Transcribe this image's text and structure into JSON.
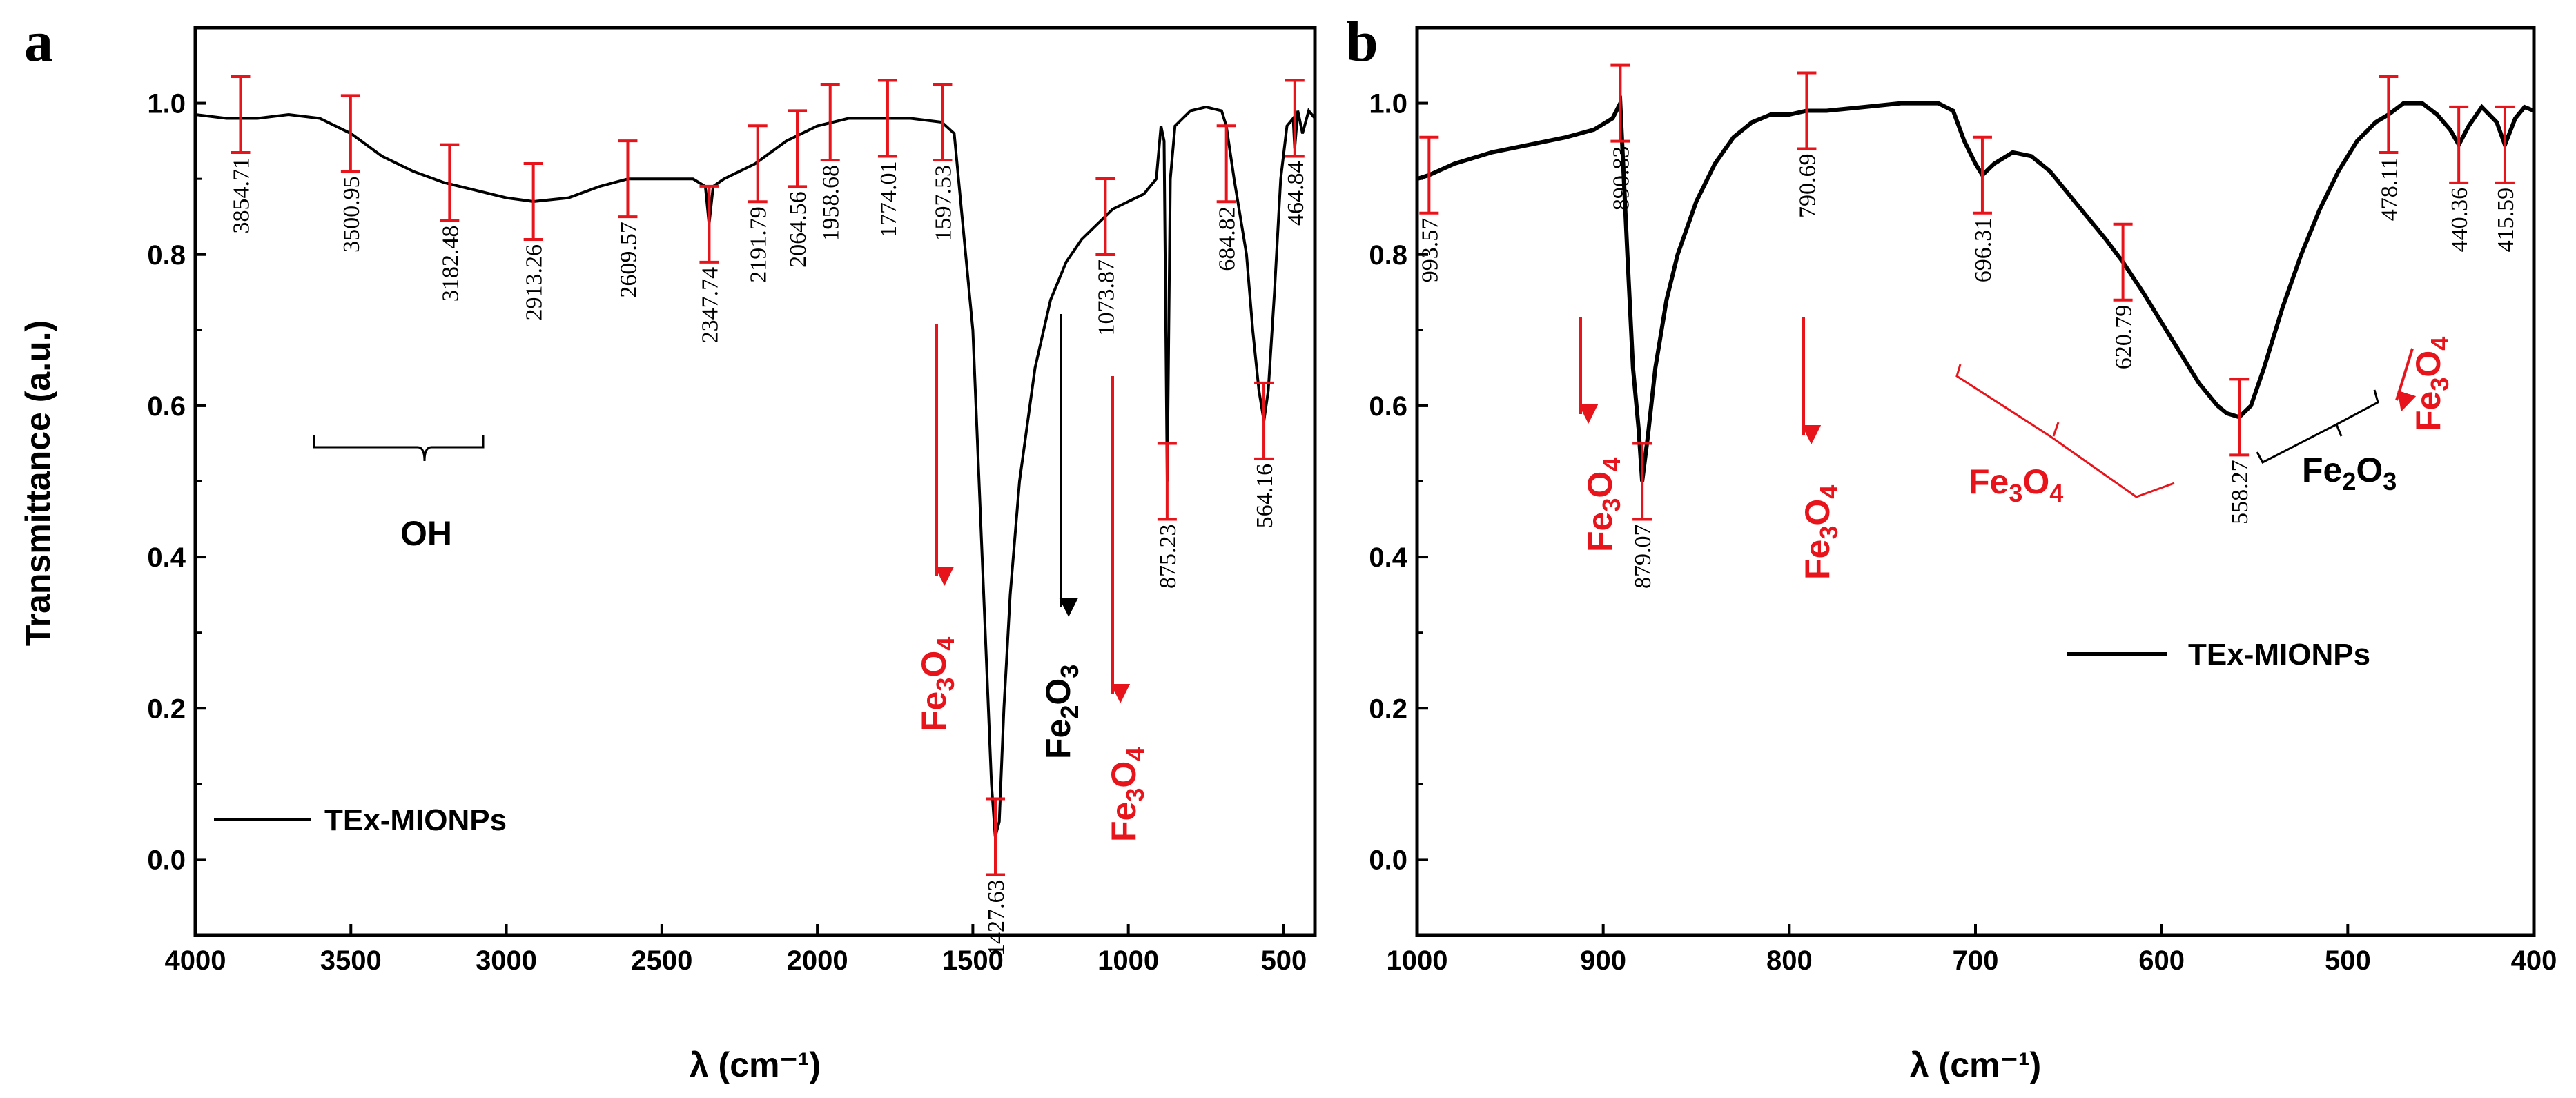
{
  "colors": {
    "curve": "#000000",
    "marker": "#e8141b",
    "annotation_red": "#e8141b",
    "annotation_black": "#000000"
  },
  "chart_data": [
    {
      "panel": "a",
      "type": "line",
      "xlabel": "λ (cm⁻¹)",
      "ylabel": "Transmittance (a.u.)",
      "xlim": [
        4000,
        400
      ],
      "ylim": [
        -0.1,
        1.1
      ],
      "xticks": [
        "4000",
        "3500",
        "3000",
        "2500",
        "2000",
        "1500",
        "1000",
        "500"
      ],
      "yticks": [
        "0.0",
        "0.2",
        "0.4",
        "0.6",
        "0.8",
        "1.0"
      ],
      "legend": "TEx-MIONPs",
      "series": [
        {
          "name": "TEx-MIONPs",
          "x": [
            4000,
            3900,
            3800,
            3700,
            3600,
            3500,
            3400,
            3300,
            3200,
            3100,
            3000,
            2913,
            2800,
            2700,
            2609,
            2500,
            2400,
            2360,
            2348,
            2335,
            2300,
            2200,
            2100,
            2000,
            1900,
            1800,
            1700,
            1600,
            1560,
            1500,
            1460,
            1440,
            1428,
            1415,
            1400,
            1380,
            1350,
            1300,
            1250,
            1200,
            1150,
            1100,
            1050,
            1000,
            950,
            910,
            895,
            885,
            875,
            865,
            850,
            800,
            750,
            700,
            685,
            660,
            620,
            600,
            580,
            564,
            550,
            530,
            510,
            490,
            470,
            465,
            455,
            440,
            420,
            400
          ],
          "y": [
            0.985,
            0.98,
            0.98,
            0.985,
            0.98,
            0.96,
            0.93,
            0.91,
            0.895,
            0.885,
            0.875,
            0.87,
            0.875,
            0.89,
            0.9,
            0.9,
            0.9,
            0.89,
            0.84,
            0.89,
            0.9,
            0.92,
            0.95,
            0.97,
            0.98,
            0.98,
            0.98,
            0.975,
            0.96,
            0.7,
            0.3,
            0.1,
            0.03,
            0.05,
            0.2,
            0.35,
            0.5,
            0.65,
            0.74,
            0.79,
            0.82,
            0.84,
            0.86,
            0.87,
            0.88,
            0.9,
            0.97,
            0.95,
            0.5,
            0.9,
            0.97,
            0.99,
            0.995,
            0.99,
            0.97,
            0.9,
            0.8,
            0.7,
            0.62,
            0.58,
            0.62,
            0.75,
            0.9,
            0.97,
            0.98,
            0.94,
            0.99,
            0.96,
            0.99,
            0.98
          ]
        }
      ],
      "peaks": [
        {
          "label": "3854.71",
          "x": 3854.71,
          "y": 0.985
        },
        {
          "label": "3500.95",
          "x": 3500.95,
          "y": 0.96
        },
        {
          "label": "3182.48",
          "x": 3182.48,
          "y": 0.895
        },
        {
          "label": "2913.26",
          "x": 2913.26,
          "y": 0.87
        },
        {
          "label": "2609.57",
          "x": 2609.57,
          "y": 0.9
        },
        {
          "label": "2347.74",
          "x": 2347.74,
          "y": 0.84
        },
        {
          "label": "2191.79",
          "x": 2191.79,
          "y": 0.92
        },
        {
          "label": "2064.56",
          "x": 2064.56,
          "y": 0.94
        },
        {
          "label": "1958.68",
          "x": 1958.68,
          "y": 0.975
        },
        {
          "label": "1774.01",
          "x": 1774.01,
          "y": 0.98
        },
        {
          "label": "1597.53",
          "x": 1597.53,
          "y": 0.975
        },
        {
          "label": "1427.63",
          "x": 1427.63,
          "y": 0.03
        },
        {
          "label": "1073.87",
          "x": 1073.87,
          "y": 0.85
        },
        {
          "label": "875.23",
          "x": 875.23,
          "y": 0.5
        },
        {
          "label": "684.82",
          "x": 684.82,
          "y": 0.92
        },
        {
          "label": "564.16",
          "x": 564.16,
          "y": 0.58
        },
        {
          "label": "464.84",
          "x": 464.84,
          "y": 0.98
        }
      ],
      "annotations": {
        "oh": "OH",
        "fe3o4_1": {
          "main": "Fe",
          "sub1": "3",
          "mid": "O",
          "sub2": "4"
        },
        "fe2o3_1": {
          "main": "Fe",
          "sub1": "2",
          "mid": "O",
          "sub2": "3"
        },
        "fe3o4_2": {
          "main": "Fe",
          "sub1": "3",
          "mid": "O",
          "sub2": "4"
        }
      }
    },
    {
      "panel": "b",
      "type": "line",
      "xlabel": "λ (cm⁻¹)",
      "ylabel": "",
      "xlim": [
        1000,
        400
      ],
      "ylim": [
        -0.1,
        1.1
      ],
      "xticks": [
        "1000",
        "900",
        "800",
        "700",
        "600",
        "500",
        "400"
      ],
      "yticks": [
        "0.0",
        "0.2",
        "0.4",
        "0.6",
        "0.8",
        "1.0"
      ],
      "legend": "TEx-MIONPs",
      "series": [
        {
          "name": "TEx-MIONPs",
          "x": [
            1000,
            993.57,
            980,
            960,
            940,
            920,
            905,
            895,
            890.83,
            887,
            884,
            881,
            879.07,
            876,
            872,
            866,
            860,
            850,
            840,
            830,
            820,
            810,
            800,
            790.69,
            780,
            760,
            740,
            720,
            712,
            706,
            700,
            696.31,
            690,
            680,
            670,
            660,
            650,
            640,
            630,
            620.79,
            610,
            600,
            590,
            580,
            570,
            565,
            558.27,
            552,
            545,
            535,
            525,
            515,
            505,
            495,
            485,
            478.11,
            470,
            460,
            452,
            445,
            440.36,
            435,
            428,
            420,
            415.59,
            410,
            405,
            400
          ],
          "y": [
            0.9,
            0.905,
            0.92,
            0.935,
            0.945,
            0.955,
            0.965,
            0.98,
            1.0,
            0.8,
            0.65,
            0.57,
            0.5,
            0.56,
            0.65,
            0.74,
            0.8,
            0.87,
            0.92,
            0.955,
            0.975,
            0.985,
            0.985,
            0.99,
            0.99,
            0.995,
            1.0,
            1.0,
            0.99,
            0.95,
            0.92,
            0.905,
            0.92,
            0.935,
            0.93,
            0.91,
            0.88,
            0.85,
            0.82,
            0.79,
            0.75,
            0.71,
            0.67,
            0.63,
            0.6,
            0.59,
            0.585,
            0.6,
            0.65,
            0.73,
            0.8,
            0.86,
            0.91,
            0.95,
            0.975,
            0.985,
            1.0,
            1.0,
            0.985,
            0.965,
            0.945,
            0.97,
            0.995,
            0.975,
            0.945,
            0.98,
            0.995,
            0.99
          ]
        }
      ],
      "peaks": [
        {
          "label": "993.57",
          "x": 993.57,
          "y": 0.905
        },
        {
          "label": "890.83",
          "x": 890.83,
          "y": 1.0
        },
        {
          "label": "879.07",
          "x": 879.07,
          "y": 0.5
        },
        {
          "label": "790.69",
          "x": 790.69,
          "y": 0.99
        },
        {
          "label": "696.31",
          "x": 696.31,
          "y": 0.905
        },
        {
          "label": "620.79",
          "x": 620.79,
          "y": 0.79
        },
        {
          "label": "558.27",
          "x": 558.27,
          "y": 0.585
        },
        {
          "label": "478.11",
          "x": 478.11,
          "y": 0.985
        },
        {
          "label": "440.36",
          "x": 440.36,
          "y": 0.945
        },
        {
          "label": "415.59",
          "x": 415.59,
          "y": 0.945
        }
      ],
      "annotations": {
        "fe3o4_1": {
          "main": "Fe",
          "sub1": "3",
          "mid": "O",
          "sub2": "4"
        },
        "fe3o4_2": {
          "main": "Fe",
          "sub1": "3",
          "mid": "O",
          "sub2": "4"
        },
        "fe3o4_3": {
          "main": "Fe",
          "sub1": "3",
          "mid": "O",
          "sub2": "4"
        },
        "fe2o3_1": {
          "main": "Fe",
          "sub1": "2",
          "mid": "O",
          "sub2": "3"
        },
        "fe3o4_4": {
          "main": "Fe",
          "sub1": "3",
          "mid": "O",
          "sub2": "4"
        }
      }
    }
  ]
}
